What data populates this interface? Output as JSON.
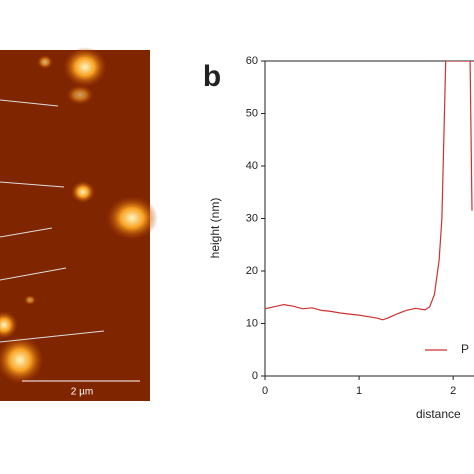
{
  "image": {
    "scale_bar": "2 µm"
  },
  "chart_data": {
    "type": "line",
    "panel_label": "b",
    "xlabel": "distance",
    "ylabel": "height (nm)",
    "x": [
      0,
      0.1,
      0.2,
      0.3,
      0.4,
      0.5,
      0.6,
      0.7,
      0.8,
      0.9,
      1.0,
      1.1,
      1.2,
      1.25,
      1.3,
      1.4,
      1.5,
      1.6,
      1.7,
      1.75,
      1.8,
      1.85,
      1.88,
      1.9,
      1.92,
      2.18,
      2.2
    ],
    "series": [
      {
        "name": "P",
        "color": "#d03030",
        "values": [
          12.8,
          13.2,
          13.6,
          13.3,
          12.8,
          13.0,
          12.5,
          12.3,
          12.0,
          11.8,
          11.6,
          11.3,
          11.0,
          10.7,
          11.0,
          11.8,
          12.5,
          12.9,
          12.6,
          13.2,
          15.5,
          22,
          30,
          45,
          60,
          60,
          31.5
        ]
      }
    ],
    "xlim": [
      0,
      2.2
    ],
    "ylim": [
      0,
      60
    ],
    "xticks": [
      0,
      1,
      2
    ],
    "yticks": [
      0,
      10,
      20,
      30,
      40,
      50,
      60
    ],
    "legend": "bottom-right"
  }
}
